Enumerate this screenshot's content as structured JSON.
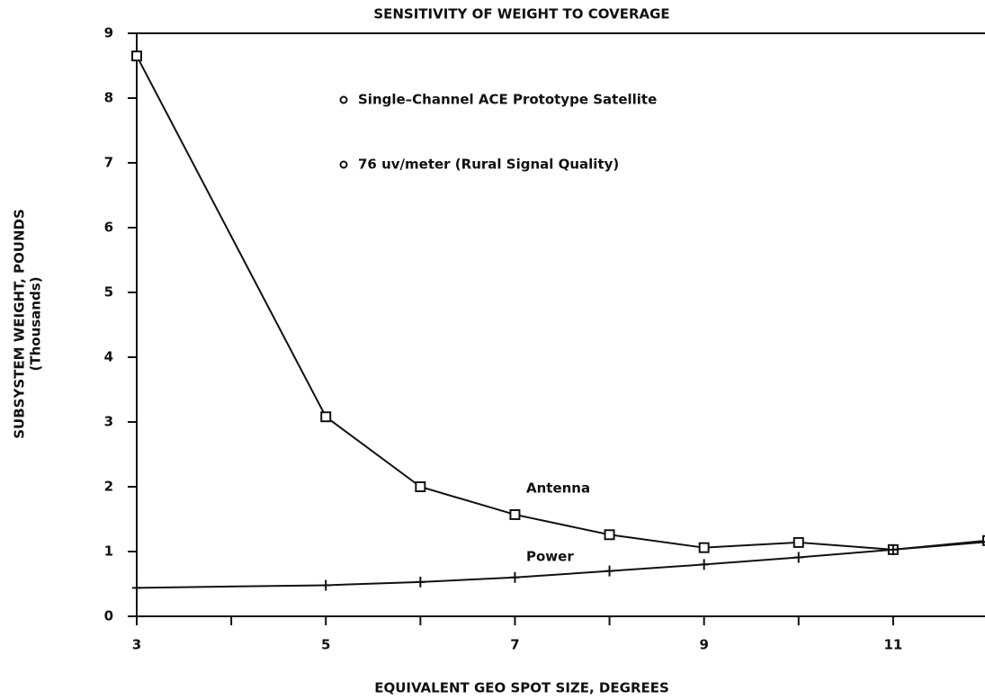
{
  "chart_data": {
    "type": "line",
    "title": "SENSITIVITY OF WEIGHT TO COVERAGE",
    "x_label": "EQUIVALENT GEO SPOT SIZE, DEGREES",
    "y_label": [
      "SUBSYSTEM WEIGHT, POUNDS",
      "(Thousands)"
    ],
    "annotations": [
      "Single–Channel ACE Prototype Satellite",
      "76 uv/meter (Rural Signal Quality)"
    ],
    "xlim": [
      3,
      12
    ],
    "xticks": [
      3,
      5,
      7,
      9,
      11
    ],
    "xminor_ticks": [
      4,
      6,
      8,
      10
    ],
    "ylim": [
      0,
      9
    ],
    "yticks": [
      0,
      1,
      2,
      3,
      4,
      5,
      6,
      7,
      8,
      9
    ],
    "series": [
      {
        "name": "Antenna",
        "color": "#111111",
        "marker": "square",
        "x": [
          3,
          5,
          6,
          7,
          8,
          9,
          10,
          11,
          12
        ],
        "values": [
          8.65,
          3.08,
          2.0,
          1.57,
          1.26,
          1.06,
          1.14,
          1.03,
          1.17
        ]
      },
      {
        "name": "Power",
        "color": "#111111",
        "marker": "plus",
        "x": [
          3,
          5,
          6,
          7,
          8,
          9,
          10,
          11,
          12
        ],
        "values": [
          0.44,
          0.48,
          0.53,
          0.6,
          0.7,
          0.8,
          0.91,
          1.03,
          1.15
        ]
      }
    ]
  }
}
